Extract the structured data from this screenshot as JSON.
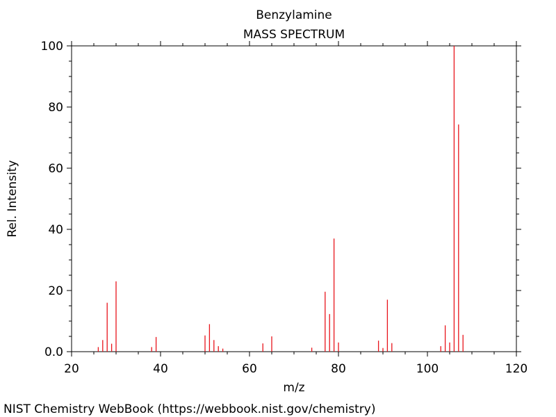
{
  "chart_data": {
    "type": "bar",
    "title": "Benzylamine",
    "subtitle": "MASS SPECTRUM",
    "xlabel": "m/z",
    "ylabel": "Rel. Intensity",
    "xlim": [
      20,
      120
    ],
    "ylim": [
      0,
      100
    ],
    "x_ticks": [
      20,
      40,
      60,
      80,
      100,
      120
    ],
    "y_ticks": [
      0,
      20,
      40,
      60,
      80,
      100
    ],
    "y_tick_labels": [
      "0.0",
      "20",
      "40",
      "60",
      "80",
      "100"
    ],
    "grid": false,
    "legend": "none",
    "bar_color": "#e8141b",
    "peaks": [
      {
        "mz": 26,
        "intensity": 1.5
      },
      {
        "mz": 27,
        "intensity": 3.8
      },
      {
        "mz": 28,
        "intensity": 16.0
      },
      {
        "mz": 29,
        "intensity": 2.6
      },
      {
        "mz": 30,
        "intensity": 23.0
      },
      {
        "mz": 38,
        "intensity": 1.5
      },
      {
        "mz": 39,
        "intensity": 4.8
      },
      {
        "mz": 50,
        "intensity": 5.3
      },
      {
        "mz": 51,
        "intensity": 9.0
      },
      {
        "mz": 52,
        "intensity": 3.8
      },
      {
        "mz": 53,
        "intensity": 1.8
      },
      {
        "mz": 54,
        "intensity": 1.0
      },
      {
        "mz": 63,
        "intensity": 2.7
      },
      {
        "mz": 65,
        "intensity": 5.0
      },
      {
        "mz": 74,
        "intensity": 1.3
      },
      {
        "mz": 77,
        "intensity": 19.6
      },
      {
        "mz": 78,
        "intensity": 12.3
      },
      {
        "mz": 79,
        "intensity": 37.0
      },
      {
        "mz": 80,
        "intensity": 3.0
      },
      {
        "mz": 89,
        "intensity": 3.6
      },
      {
        "mz": 90,
        "intensity": 1.2
      },
      {
        "mz": 91,
        "intensity": 17.0
      },
      {
        "mz": 92,
        "intensity": 2.8
      },
      {
        "mz": 103,
        "intensity": 1.8
      },
      {
        "mz": 104,
        "intensity": 8.6
      },
      {
        "mz": 105,
        "intensity": 3.0
      },
      {
        "mz": 106,
        "intensity": 100.0
      },
      {
        "mz": 107,
        "intensity": 74.3
      },
      {
        "mz": 108,
        "intensity": 5.5
      }
    ]
  },
  "footer": {
    "source": "NIST Chemistry WebBook (https://webbook.nist.gov/chemistry)"
  }
}
